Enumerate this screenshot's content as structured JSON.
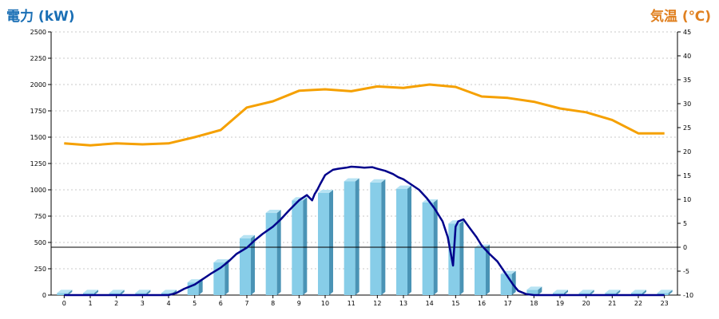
{
  "chart_data": {
    "type": "bar",
    "left_axis_title": "電力 (kW)",
    "right_axis_title": "気温 (℃)",
    "categories": [
      "0",
      "1",
      "2",
      "3",
      "4",
      "5",
      "6",
      "7",
      "8",
      "9",
      "10",
      "11",
      "12",
      "13",
      "14",
      "15",
      "16",
      "17",
      "18",
      "19",
      "20",
      "21",
      "22",
      "23"
    ],
    "y_left": {
      "min": 0,
      "max": 2500,
      "ticks": [
        0,
        250,
        500,
        750,
        1000,
        1250,
        1500,
        1750,
        2000,
        2250,
        2500
      ]
    },
    "y_right": {
      "min": -10,
      "max": 45,
      "ticks": [
        -10,
        -5,
        0,
        5,
        10,
        15,
        20,
        25,
        30,
        35,
        40,
        45
      ]
    },
    "grid": true,
    "series": [
      {
        "type": "bar",
        "axis": "left",
        "color": "#87cde8",
        "values": [
          20,
          20,
          20,
          20,
          20,
          120,
          310,
          540,
          780,
          900,
          970,
          1080,
          1070,
          1010,
          880,
          680,
          450,
          200,
          50,
          20,
          20,
          20,
          20,
          20
        ]
      },
      {
        "type": "line",
        "axis": "left",
        "color": "#00008b",
        "x": [
          0,
          1,
          2,
          3,
          4,
          4.3,
          4.6,
          5,
          5.3,
          5.6,
          6,
          6.3,
          6.6,
          7,
          7.3,
          7.6,
          8,
          8.3,
          8.6,
          9,
          9.3,
          9.5,
          9.6,
          9.7,
          9.8,
          10,
          10.3,
          10.5,
          10.8,
          11,
          11.3,
          11.5,
          11.8,
          12,
          12.3,
          12.6,
          12.8,
          13,
          13.3,
          13.6,
          13.9,
          14.2,
          14.5,
          14.7,
          14.9,
          15,
          15.1,
          15.3,
          15.5,
          15.8,
          16,
          16.3,
          16.6,
          16.9,
          17.2,
          17.4,
          17.7,
          18,
          18.3,
          19,
          20,
          21,
          22,
          23
        ],
        "values": [
          0,
          0,
          0,
          0,
          0,
          20,
          60,
          100,
          150,
          200,
          260,
          320,
          390,
          450,
          520,
          580,
          650,
          720,
          800,
          900,
          950,
          900,
          960,
          1000,
          1050,
          1140,
          1190,
          1200,
          1210,
          1220,
          1215,
          1210,
          1215,
          1200,
          1180,
          1150,
          1120,
          1100,
          1050,
          1000,
          920,
          820,
          700,
          550,
          280,
          650,
          700,
          720,
          650,
          550,
          470,
          390,
          320,
          210,
          100,
          40,
          10,
          0,
          0,
          0,
          0,
          0,
          0,
          0
        ]
      },
      {
        "type": "line",
        "axis": "right",
        "color": "#f5a000",
        "x": [
          0,
          1,
          2,
          3,
          4,
          5,
          6,
          7,
          8,
          9,
          10,
          11,
          12,
          13,
          14,
          15,
          16,
          17,
          18,
          19,
          20,
          21,
          22,
          23
        ],
        "values": [
          21.7,
          21.3,
          21.7,
          21.5,
          21.7,
          23,
          24.5,
          29.2,
          30.5,
          32.7,
          33,
          32.6,
          33.6,
          33.3,
          34,
          33.5,
          31.5,
          31.2,
          30.4,
          29,
          28.2,
          26.6,
          23.8,
          23.8
        ]
      }
    ]
  }
}
